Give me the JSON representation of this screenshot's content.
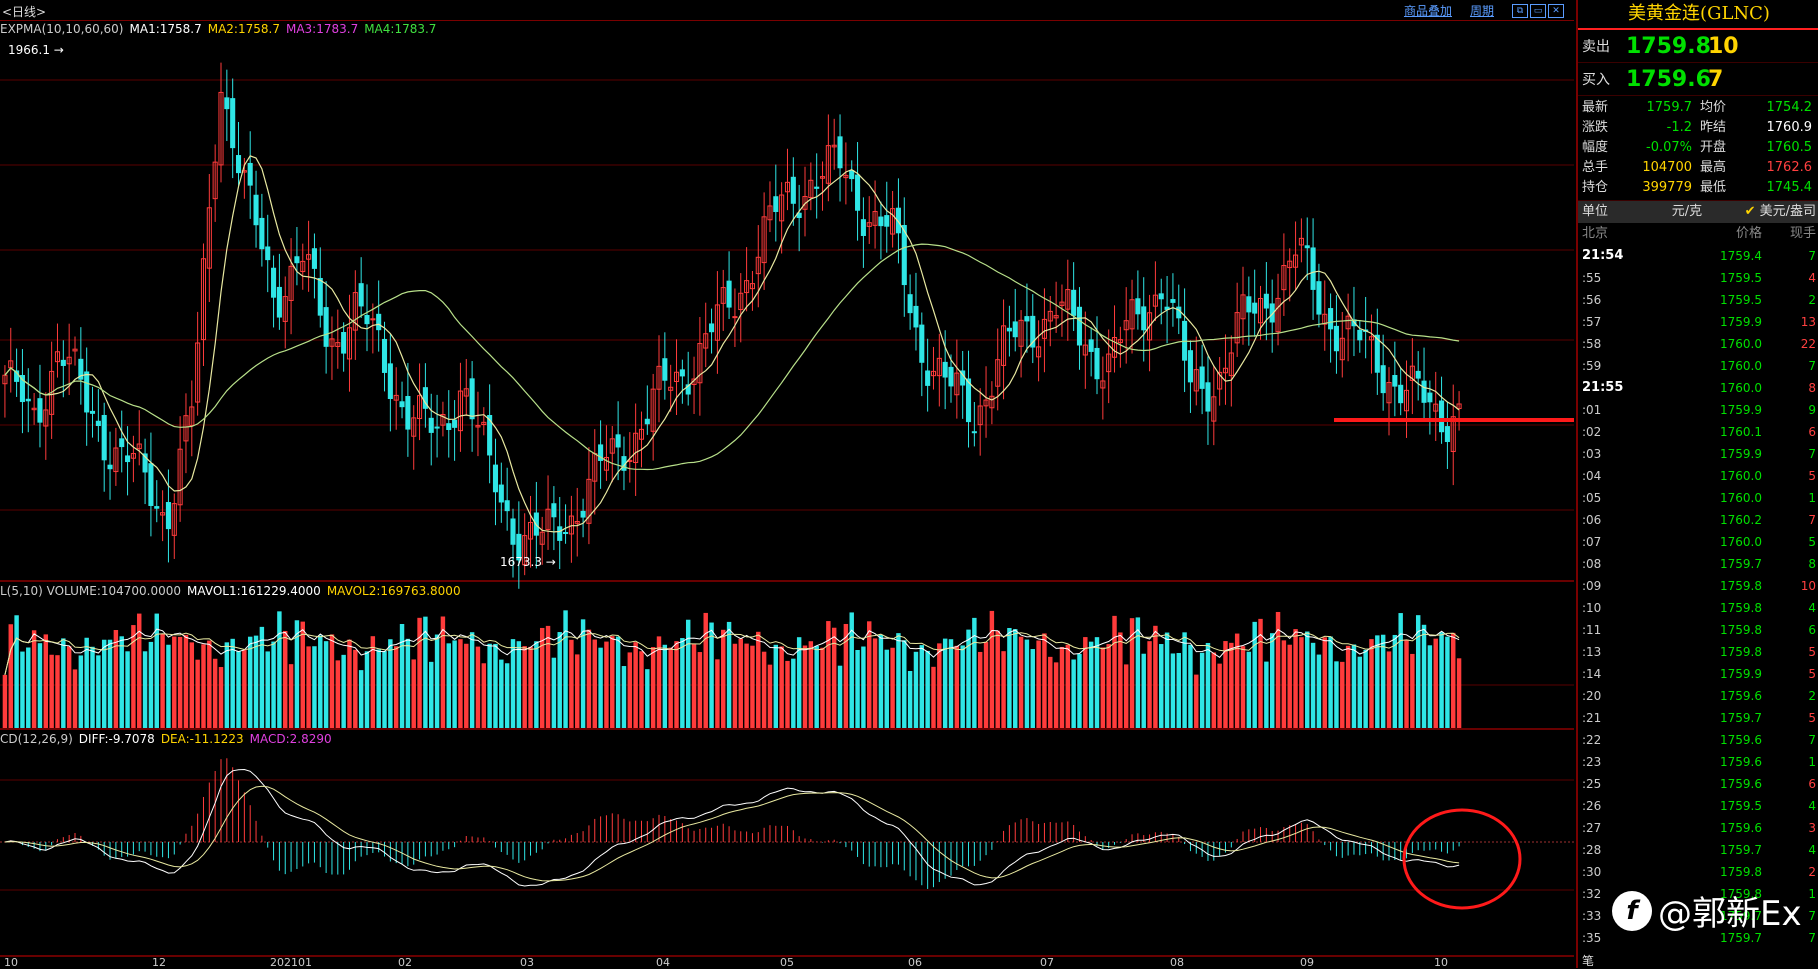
{
  "topbar": {
    "cycle": "<日线>",
    "overlay_link": "商品叠加",
    "period_link": "周期"
  },
  "main_legend": {
    "expma": "EXPMA(10,10,60,60)",
    "ma1": "MA1:1758.7",
    "ma2": "MA2:1758.7",
    "ma3": "MA3:1783.7",
    "ma4": "MA4:1783.7"
  },
  "annotations": {
    "high": "1966.1",
    "low": "1673.3"
  },
  "volume_legend": {
    "vol": "L(5,10) VOLUME:104700.0000",
    "mavol1": "MAVOL1:161229.4000",
    "mavol2": "MAVOL2:169763.8000"
  },
  "macd_legend": {
    "macd": "CD(12,26,9)",
    "diff": "DIFF:-9.7078",
    "dea": "DEA:-11.1223",
    "macdv": "MACD:2.8290"
  },
  "x_axis": [
    "10",
    "12",
    "202101",
    "02",
    "03",
    "04",
    "05",
    "06",
    "07",
    "08",
    "09",
    "10"
  ],
  "colors": {
    "up": "#ff3b3b",
    "down": "#2fe6e6",
    "ma_yellow": "#e8e8a0",
    "ma_white": "#ffffff",
    "ma_green": "#b8e08a",
    "grid": "#5a0000"
  },
  "panel": {
    "title": "美黄金连(GLNC)",
    "sell_label": "卖出",
    "sell_price": "1759.8",
    "sell_qty": "10",
    "buy_label": "买入",
    "buy_price": "1759.6",
    "buy_qty": "7",
    "stats": [
      {
        "k": "最新",
        "v": "1759.7",
        "vc": "#00e000",
        "k2": "均价",
        "v2": "1754.2",
        "v2c": "#00e000"
      },
      {
        "k": "涨跌",
        "v": "-1.2",
        "vc": "#00e000",
        "k2": "昨结",
        "v2": "1760.9",
        "v2c": "#ffffff"
      },
      {
        "k": "幅度",
        "v": "-0.07%",
        "vc": "#00e000",
        "k2": "开盘",
        "v2": "1760.5",
        "v2c": "#00e000"
      },
      {
        "k": "总手",
        "v": "104700",
        "vc": "#ffd400",
        "k2": "最高",
        "v2": "1762.6",
        "v2c": "#ff4040"
      },
      {
        "k": "持仓",
        "v": "399779",
        "vc": "#ffd400",
        "k2": "最低",
        "v2": "1745.4",
        "v2c": "#00e000"
      }
    ],
    "unit_label": "单位",
    "unit_cny": "元/克",
    "unit_usd": "美元/盎司",
    "tick_head": {
      "time": "北京",
      "price": "价格",
      "qty": "现手"
    },
    "ticks": [
      {
        "t": "21:54",
        "p": "1759.4",
        "q": "7",
        "qc": "#00e000",
        "full": true
      },
      {
        "t": ":55",
        "p": "1759.5",
        "q": "4",
        "qc": "#ff4040"
      },
      {
        "t": ":56",
        "p": "1759.5",
        "q": "2",
        "qc": "#00e000"
      },
      {
        "t": ":57",
        "p": "1759.9",
        "q": "13",
        "qc": "#ff4040"
      },
      {
        "t": ":58",
        "p": "1760.0",
        "q": "22",
        "qc": "#ff4040"
      },
      {
        "t": ":59",
        "p": "1760.0",
        "q": "7",
        "qc": "#00e000"
      },
      {
        "t": "21:55",
        "p": "1760.0",
        "q": "8",
        "qc": "#ff4040",
        "full": true
      },
      {
        "t": ":01",
        "p": "1759.9",
        "q": "9",
        "qc": "#00e000"
      },
      {
        "t": ":02",
        "p": "1760.1",
        "q": "6",
        "qc": "#ff4040"
      },
      {
        "t": ":03",
        "p": "1759.9",
        "q": "7",
        "qc": "#00e000"
      },
      {
        "t": ":04",
        "p": "1760.0",
        "q": "5",
        "qc": "#ff4040"
      },
      {
        "t": ":05",
        "p": "1760.0",
        "q": "1",
        "qc": "#00e000"
      },
      {
        "t": ":06",
        "p": "1760.2",
        "q": "7",
        "qc": "#ff4040"
      },
      {
        "t": ":07",
        "p": "1760.0",
        "q": "5",
        "qc": "#00e000"
      },
      {
        "t": ":08",
        "p": "1759.7",
        "q": "8",
        "qc": "#00e000"
      },
      {
        "t": ":09",
        "p": "1759.8",
        "q": "10",
        "qc": "#ff4040"
      },
      {
        "t": ":10",
        "p": "1759.8",
        "q": "4",
        "qc": "#00e000"
      },
      {
        "t": ":11",
        "p": "1759.8",
        "q": "6",
        "qc": "#00e000"
      },
      {
        "t": ":13",
        "p": "1759.8",
        "q": "5",
        "qc": "#ff4040"
      },
      {
        "t": ":14",
        "p": "1759.9",
        "q": "5",
        "qc": "#ff4040"
      },
      {
        "t": ":20",
        "p": "1759.6",
        "q": "2",
        "qc": "#00e000"
      },
      {
        "t": ":21",
        "p": "1759.7",
        "q": "5",
        "qc": "#ff4040"
      },
      {
        "t": ":22",
        "p": "1759.6",
        "q": "7",
        "qc": "#00e000"
      },
      {
        "t": ":23",
        "p": "1759.6",
        "q": "1",
        "qc": "#00e000"
      },
      {
        "t": ":25",
        "p": "1759.6",
        "q": "6",
        "qc": "#ff4040"
      },
      {
        "t": ":26",
        "p": "1759.5",
        "q": "4",
        "qc": "#00e000"
      },
      {
        "t": ":27",
        "p": "1759.6",
        "q": "3",
        "qc": "#ff4040"
      },
      {
        "t": ":28",
        "p": "1759.7",
        "q": "4",
        "qc": "#00e000"
      },
      {
        "t": ":30",
        "p": "1759.8",
        "q": "2",
        "qc": "#ff4040"
      },
      {
        "t": ":32",
        "p": "1759.8",
        "q": "1",
        "qc": "#00e000"
      },
      {
        "t": ":33",
        "p": "1759.7",
        "q": "7",
        "qc": "#00e000"
      },
      {
        "t": ":35",
        "p": "1759.7",
        "q": "7",
        "qc": "#00e000"
      }
    ],
    "bottom_label": "笔"
  },
  "watermark": {
    "logo": "f",
    "text": "@郭新Ex"
  },
  "chart_data": {
    "type": "candlestick",
    "x": [
      "10",
      "12",
      "202101",
      "02",
      "03",
      "04",
      "05",
      "06",
      "07",
      "08",
      "09",
      "10"
    ],
    "close_path": [
      1780,
      1750,
      1800,
      1760,
      1740,
      1720,
      1700,
      1760,
      1960,
      1880,
      1830,
      1850,
      1800,
      1820,
      1790,
      1760,
      1740,
      1780,
      1720,
      1690,
      1680,
      1700,
      1720,
      1740,
      1760,
      1780,
      1800,
      1820,
      1860,
      1880,
      1900,
      1900,
      1880,
      1860,
      1800,
      1770,
      1760,
      1790,
      1810,
      1820,
      1800,
      1790,
      1810,
      1840,
      1770,
      1780,
      1810,
      1830,
      1850,
      1820,
      1800,
      1790,
      1770,
      1760,
      1759.7
    ],
    "annotations": [
      {
        "label": "1966.1"
      },
      {
        "label": "1673.3"
      }
    ],
    "volume_mavol1": 161229.4,
    "volume_mavol2": 169763.8,
    "volume": 104700,
    "macd": {
      "diff": -9.7078,
      "dea": -11.1223,
      "macd": 2.829
    }
  }
}
